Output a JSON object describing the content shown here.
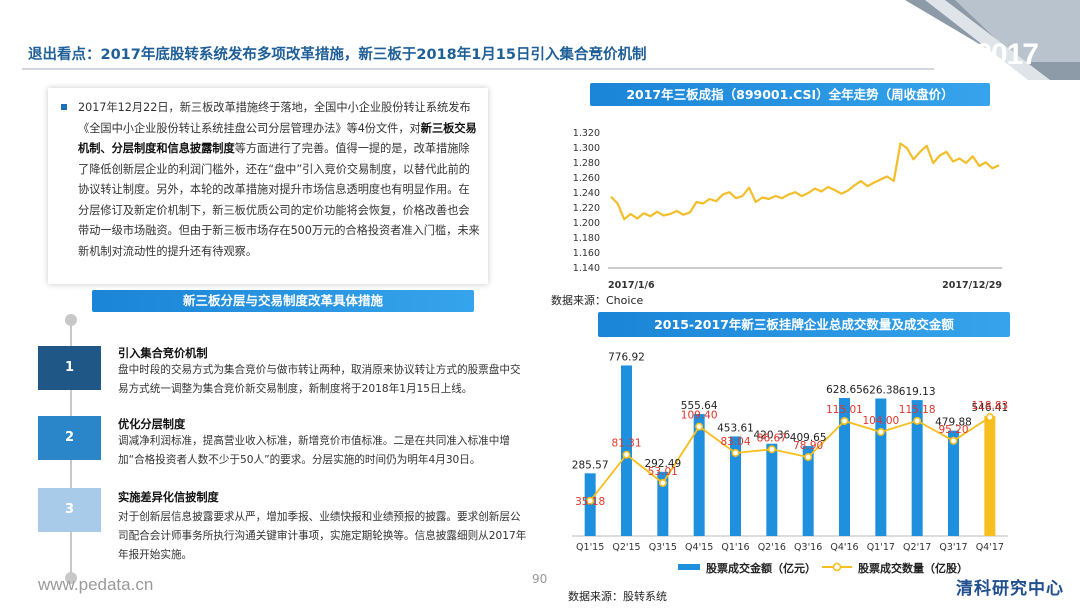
{
  "header": {
    "title": "退出看点：2017年底股转系统发布多项改革措施，新三板于2018年1月15日引入集合竞价机制",
    "year_badge": "2017"
  },
  "intro": {
    "p1": "2017年12月22日，新三板改革措施终于落地，全国中小企业股份转让系统发布《全国中小企业股份转让系统挂盘公司分层管理办法》等4份文件，对",
    "p2_bold": "新三板交易机制、分层制度和信息披露制度",
    "p3": "等方面进行了完善。值得一提的是，改革措施除了降低创新层企业的利润门槛外，还在“盘中”引入竞价交易制度，以替代此前的协议转让制度。另外，本轮的改革措施对提升市场信息透明度也有明显作用。在分层修订及新定价机制下，新三板优质公司的定价功能将会恢复，价格改善也会带动一级市场融资。但由于新三板市场存在500万元的合格投资者准入门槛，未来新机制对流动性的提升还有待观察。"
  },
  "measures": {
    "banner": "新三板分层与交易制度改革具体措施",
    "items": [
      {
        "num": "1",
        "title": "引入集合竞价机制",
        "desc": "盘中时段的交易方式为集合竞价与做市转让两种，取消原来协议转让方式的股票盘中交易方式统一调整为集合竞价新交易制度，新制度将于2018年1月15日上线。",
        "color": "#1f5787"
      },
      {
        "num": "2",
        "title": "优化分层制度",
        "desc": "调减净利润标准，提高营业收入标准，新增竞价市值标准。二是在共同准入标准中增加“合格投资者人数不少于50人”的要求。分层实施的时间仍为明年4月30日。",
        "color": "#2b86c9"
      },
      {
        "num": "3",
        "title": "实施差异化信披制度",
        "desc": "对于创新层信息披露要求从严，增加季报、业绩快报和业绩预报的披露。要求创新层公司配合会计师事务所执行沟通关键审计事项，实施定期轮换等。信息披露细则从2017年年报开始实施。",
        "color": "#a8cbea"
      }
    ]
  },
  "footer": {
    "website": "www.pedata.cn",
    "page": "90",
    "logo": "清科研究中心"
  },
  "chart_data": [
    {
      "type": "line",
      "title": "2017年三板成指（899001.CSI）全年走势（周收盘价）",
      "source": "数据来源：Choice",
      "x_start_label": "2017/1/6",
      "x_end_label": "2017/12/29",
      "yticks": [
        "1.320",
        "1.300",
        "1.280",
        "1.260",
        "1.240",
        "1.220",
        "1.200",
        "1.180",
        "1.160",
        "1.140"
      ],
      "ylim": [
        1.14,
        1.32
      ],
      "color": "#f2be2a",
      "values": [
        1.235,
        1.226,
        1.205,
        1.212,
        1.206,
        1.213,
        1.209,
        1.215,
        1.21,
        1.212,
        1.216,
        1.211,
        1.214,
        1.228,
        1.226,
        1.232,
        1.229,
        1.238,
        1.241,
        1.233,
        1.236,
        1.247,
        1.228,
        1.234,
        1.232,
        1.236,
        1.233,
        1.238,
        1.241,
        1.236,
        1.24,
        1.246,
        1.242,
        1.248,
        1.244,
        1.239,
        1.243,
        1.25,
        1.256,
        1.249,
        1.254,
        1.258,
        1.262,
        1.256,
        1.306,
        1.3,
        1.285,
        1.295,
        1.303,
        1.28,
        1.29,
        1.295,
        1.282,
        1.286,
        1.28,
        1.289,
        1.276,
        1.281,
        1.273,
        1.277
      ]
    },
    {
      "type": "bar",
      "title": "2015-2017年新三板挂牌企业总成交数量及成交金额",
      "source": "数据来源：股转系统",
      "categories": [
        "Q1'15",
        "Q2'15",
        "Q3'15",
        "Q4'15",
        "Q1'16",
        "Q2'16",
        "Q3'16",
        "Q4'16",
        "Q1'17",
        "Q2'17",
        "Q3'17",
        "Q4'17"
      ],
      "series": [
        {
          "name": "股票成交金额（亿元）",
          "type": "bar",
          "color": "#1e90dd",
          "highlight_color": "#f6be1e",
          "values": [
            285.57,
            776.92,
            292.49,
            555.64,
            453.61,
            420.36,
            409.65,
            628.65,
            626.38,
            619.13,
            479.88,
            546.41
          ]
        },
        {
          "name": "股票成交数量（亿股）",
          "type": "line",
          "color": "#f6be1e",
          "label_color": "#e0352b",
          "values": [
            35.18,
            81.31,
            53.01,
            109.4,
            83.04,
            86.67,
            78.9,
            115.01,
            104.0,
            115.18,
            95.2,
            118.83
          ]
        }
      ]
    }
  ]
}
